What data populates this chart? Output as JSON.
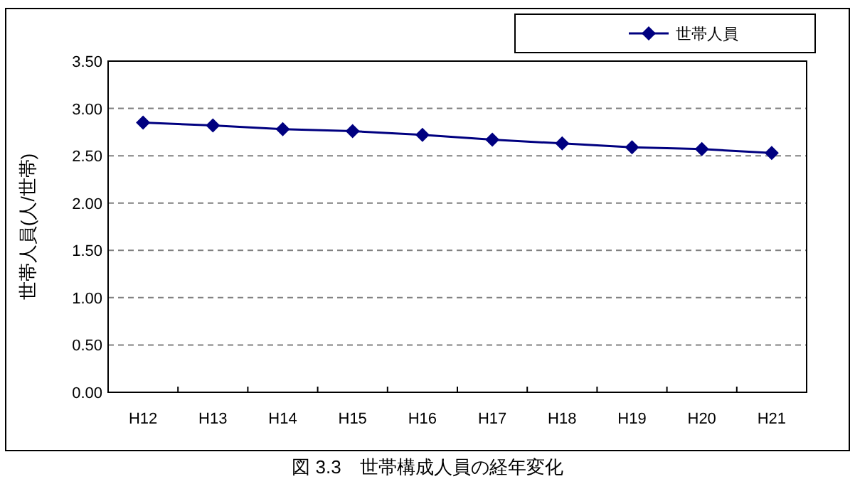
{
  "chart_data": {
    "type": "line",
    "title": "図 3.3　世帯構成人員の経年変化",
    "ylabel": "世帯人員(人/世帯)",
    "categories": [
      "H12",
      "H13",
      "H14",
      "H15",
      "H16",
      "H17",
      "H18",
      "H19",
      "H20",
      "H21"
    ],
    "series": [
      {
        "name": "世帯人員",
        "color": "#000080",
        "values": [
          2.85,
          2.82,
          2.78,
          2.76,
          2.72,
          2.67,
          2.63,
          2.59,
          2.57,
          2.53
        ]
      }
    ],
    "ylim": [
      0,
      3.5
    ],
    "yticks": [
      {
        "value": 0,
        "label": "0.00"
      },
      {
        "value": 0.5,
        "label": "0.50"
      },
      {
        "value": 1,
        "label": "1.00"
      },
      {
        "value": 1.5,
        "label": "1.50"
      },
      {
        "value": 2,
        "label": "2.00"
      },
      {
        "value": 2.5,
        "label": "2.50"
      },
      {
        "value": 3,
        "label": "3.00"
      },
      {
        "value": 3.5,
        "label": "3.50"
      }
    ],
    "grid": "y",
    "legend": "top right",
    "marker": "diamond",
    "line_style": "solid"
  }
}
